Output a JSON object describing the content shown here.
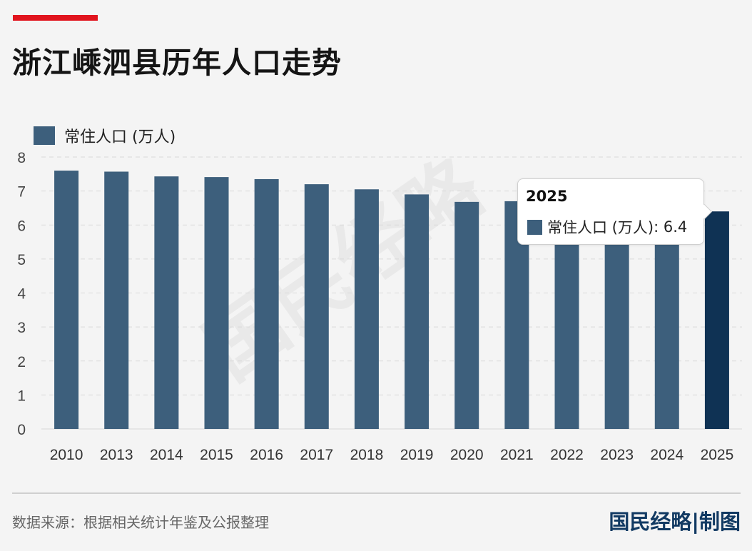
{
  "header": {
    "title": "浙江嵊泗县历年人口走势"
  },
  "legend": {
    "label": "常住人口 (万人)"
  },
  "watermark": "国民经略",
  "tooltip": {
    "title": "2025",
    "series_label": "常住人口 (万人)",
    "separator": ": ",
    "value": "6.4"
  },
  "footer": {
    "source": "数据来源：根据相关统计年鉴及公报整理",
    "brand": "国民经略|制图"
  },
  "colors": {
    "bar": "#3d5f7c",
    "highlight": "#0f3254",
    "accent": "#e1141e",
    "brand": "#123a63"
  },
  "chart_data": {
    "type": "bar",
    "categories": [
      "2010",
      "2013",
      "2014",
      "2015",
      "2016",
      "2017",
      "2018",
      "2019",
      "2020",
      "2021",
      "2022",
      "2023",
      "2024",
      "2025"
    ],
    "series": [
      {
        "name": "常住人口 (万人)",
        "values": [
          7.6,
          7.57,
          7.43,
          7.41,
          7.35,
          7.2,
          7.05,
          6.9,
          6.68,
          6.7,
          6.6,
          6.5,
          6.45,
          6.4
        ]
      }
    ],
    "ylim": [
      0,
      8
    ],
    "yticks": [
      0,
      1,
      2,
      3,
      4,
      5,
      6,
      7,
      8
    ],
    "highlighted": "2025",
    "grid": true
  }
}
